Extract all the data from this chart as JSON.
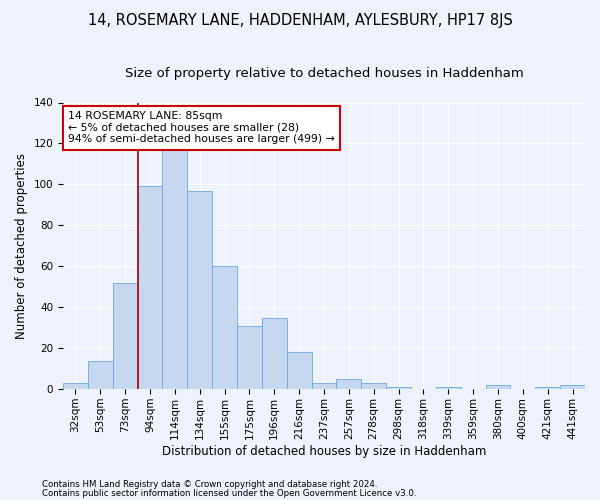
{
  "title": "14, ROSEMARY LANE, HADDENHAM, AYLESBURY, HP17 8JS",
  "subtitle": "Size of property relative to detached houses in Haddenham",
  "xlabel": "Distribution of detached houses by size in Haddenham",
  "ylabel": "Number of detached properties",
  "categories": [
    "32sqm",
    "53sqm",
    "73sqm",
    "94sqm",
    "114sqm",
    "134sqm",
    "155sqm",
    "175sqm",
    "196sqm",
    "216sqm",
    "237sqm",
    "257sqm",
    "278sqm",
    "298sqm",
    "318sqm",
    "339sqm",
    "359sqm",
    "380sqm",
    "400sqm",
    "421sqm",
    "441sqm"
  ],
  "values": [
    3,
    14,
    52,
    99,
    117,
    97,
    60,
    31,
    35,
    18,
    3,
    5,
    3,
    1,
    0,
    1,
    0,
    2,
    0,
    1,
    2
  ],
  "bar_color": "#c5d8f0",
  "bar_edge_color": "#6aaade",
  "vline_x_index": 2.5,
  "vline_color": "#aa0000",
  "annotation_line1": "14 ROSEMARY LANE: 85sqm",
  "annotation_line2": "← 5% of detached houses are smaller (28)",
  "annotation_line3": "94% of semi-detached houses are larger (499) →",
  "annotation_box_color": "#ffffff",
  "annotation_box_edge_color": "#cc0000",
  "ylim": [
    0,
    140
  ],
  "yticks": [
    0,
    20,
    40,
    60,
    80,
    100,
    120,
    140
  ],
  "title_fontsize": 10.5,
  "subtitle_fontsize": 9.5,
  "axis_label_fontsize": 8.5,
  "tick_fontsize": 7.5,
  "annot_fontsize": 7.8,
  "footer1": "Contains HM Land Registry data © Crown copyright and database right 2024.",
  "footer2": "Contains public sector information licensed under the Open Government Licence v3.0.",
  "bg_color": "#eef2fb",
  "plot_bg_color": "#eef2fb"
}
